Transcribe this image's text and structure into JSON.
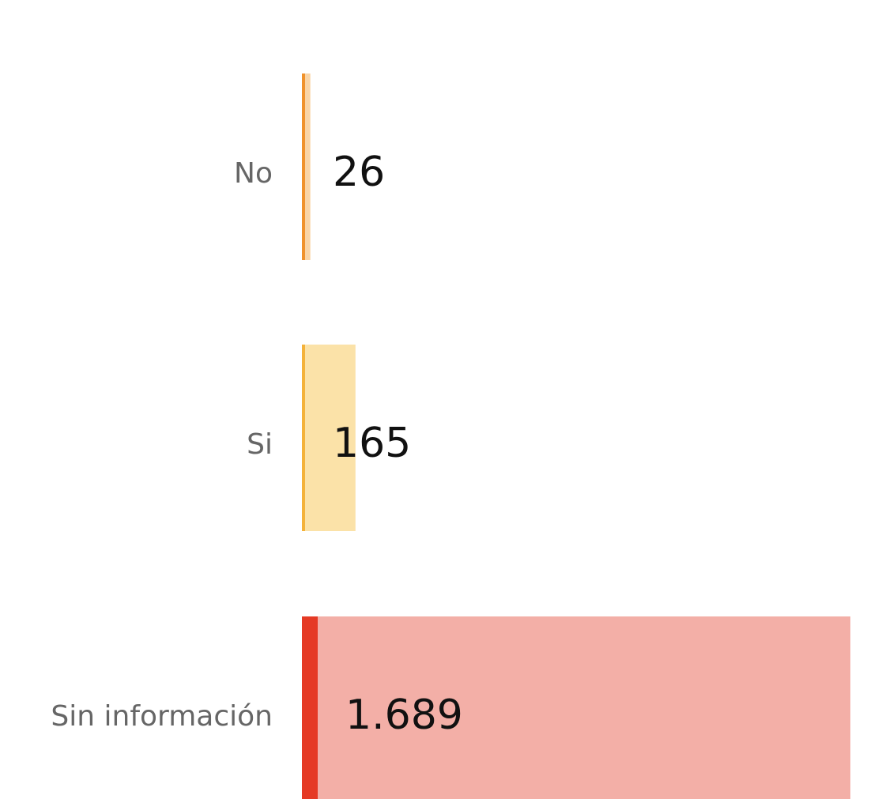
{
  "chart_data": {
    "type": "barh",
    "categories": [
      "No",
      "Si",
      "Sin información"
    ],
    "values": [
      26,
      165,
      1689
    ],
    "value_labels": [
      "26",
      "165",
      "1.689"
    ],
    "colors": [
      "#f9d4a6",
      "#fbe2a8",
      "#f3afa7"
    ],
    "accent_colors": [
      "#f0922c",
      "#f4b23a",
      "#e53a25"
    ]
  }
}
